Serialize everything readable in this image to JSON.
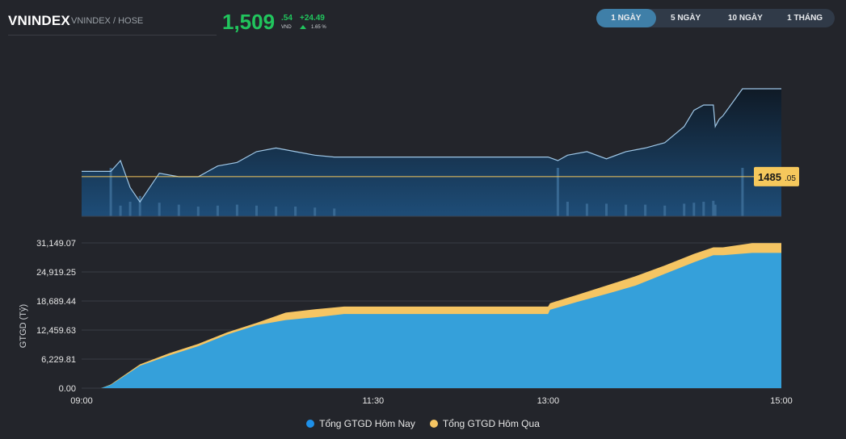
{
  "header": {
    "symbol": "VNINDEX",
    "subtitle": "VNINDEX / HOSE",
    "price_int": "1,509",
    "price_dec": ".54",
    "currency": "VND",
    "change": "+24.49",
    "change_pct": "1.65 %"
  },
  "tabs": [
    {
      "label": "1 NGÀY",
      "active": true
    },
    {
      "label": "5 NGÀY",
      "active": false
    },
    {
      "label": "10 NGÀY",
      "active": false
    },
    {
      "label": "1 THÁNG",
      "active": false
    }
  ],
  "colors": {
    "up": "#21c55d",
    "price_line": "#9fc8e8",
    "reference": "#f5c85c",
    "today": "#35a0da",
    "yesterday": "#f5c563"
  },
  "price_chart": {
    "reference_label_int": "1485",
    "reference_label_dec": ".05"
  },
  "chart_data": [
    {
      "type": "line",
      "reference": 1485.05,
      "ylim": [
        1474,
        1514
      ],
      "x": [
        "09:00",
        "09:05",
        "09:10",
        "09:15",
        "09:20",
        "09:25",
        "09:30",
        "09:40",
        "09:50",
        "10:00",
        "10:10",
        "10:20",
        "10:30",
        "10:40",
        "10:50",
        "11:00",
        "11:10",
        "11:20",
        "11:30",
        "12:00",
        "12:30",
        "13:00",
        "13:05",
        "13:10",
        "13:20",
        "13:30",
        "13:40",
        "13:50",
        "14:00",
        "14:10",
        "14:15",
        "14:20",
        "14:25",
        "14:26",
        "14:28",
        "14:30",
        "14:40",
        "14:45",
        "15:00"
      ],
      "values": [
        1486.5,
        1486.5,
        1486.5,
        1486.5,
        1489.5,
        1482,
        1478,
        1486,
        1485,
        1485,
        1488,
        1489,
        1492,
        1493,
        1492,
        1491,
        1490.5,
        1490.5,
        1490.5,
        1490.5,
        1490.5,
        1490.5,
        1489.5,
        1491,
        1492,
        1490,
        1492,
        1493,
        1494.5,
        1499,
        1503.5,
        1505,
        1505,
        1499,
        1501,
        1502,
        1509.5,
        1509.5,
        1509.5
      ],
      "volume_x": [
        "09:00",
        "09:05",
        "09:10",
        "09:15",
        "09:20",
        "09:25",
        "09:30",
        "09:40",
        "09:50",
        "10:00",
        "10:10",
        "10:20",
        "10:30",
        "10:40",
        "10:50",
        "11:00",
        "11:10",
        "11:20",
        "11:30",
        "12:00",
        "12:30",
        "13:00",
        "13:05",
        "13:10",
        "13:20",
        "13:30",
        "13:40",
        "13:50",
        "14:00",
        "14:10",
        "14:15",
        "14:20",
        "14:25",
        "14:26",
        "14:28",
        "14:30",
        "14:40",
        "14:45",
        "15:00"
      ],
      "volume": [
        0,
        0,
        0,
        100,
        22,
        30,
        42,
        28,
        24,
        20,
        22,
        24,
        22,
        20,
        20,
        18,
        16,
        0,
        0,
        0,
        0,
        0,
        100,
        30,
        26,
        26,
        24,
        24,
        22,
        26,
        28,
        30,
        32,
        24,
        0,
        0,
        100,
        0,
        0
      ]
    },
    {
      "type": "area",
      "ylabel": "GTGD (Tỷ)",
      "yticks": [
        "31,149.07",
        "24,919.25",
        "18,689.44",
        "12,459.63",
        "6,229.81",
        "0.00"
      ],
      "ylim": [
        0,
        31149.07
      ],
      "xticks": [
        "09:00",
        "11:30",
        "13:00",
        "15:00"
      ],
      "series": [
        {
          "name": "Tổng GTGD Hôm Nay",
          "x": [
            "09:00",
            "09:05",
            "09:10",
            "09:15",
            "09:30",
            "09:45",
            "10:00",
            "10:15",
            "10:30",
            "10:45",
            "11:00",
            "11:15",
            "11:30",
            "13:00",
            "13:01",
            "13:15",
            "13:30",
            "13:45",
            "14:00",
            "14:15",
            "14:25",
            "14:30",
            "14:45",
            "15:00"
          ],
          "values": [
            0,
            0,
            0,
            700,
            4800,
            7000,
            9000,
            11500,
            13500,
            14600,
            15200,
            15900,
            15900,
            15900,
            16800,
            18500,
            20200,
            22000,
            24500,
            27000,
            28500,
            28500,
            29000,
            29000
          ]
        },
        {
          "name": "Tổng GTGD Hôm Qua",
          "x": [
            "09:00",
            "09:05",
            "09:10",
            "09:15",
            "09:30",
            "09:45",
            "10:00",
            "10:15",
            "10:30",
            "10:45",
            "11:00",
            "11:15",
            "11:30",
            "13:00",
            "13:01",
            "13:15",
            "13:30",
            "13:45",
            "14:00",
            "14:15",
            "14:25",
            "14:30",
            "14:45",
            "15:00"
          ],
          "values": [
            0,
            0,
            0,
            800,
            5100,
            7500,
            9500,
            12000,
            14000,
            16200,
            16900,
            17500,
            17500,
            17500,
            18200,
            20000,
            22000,
            24000,
            26300,
            28800,
            30200,
            30200,
            31100,
            31100
          ]
        }
      ]
    }
  ]
}
